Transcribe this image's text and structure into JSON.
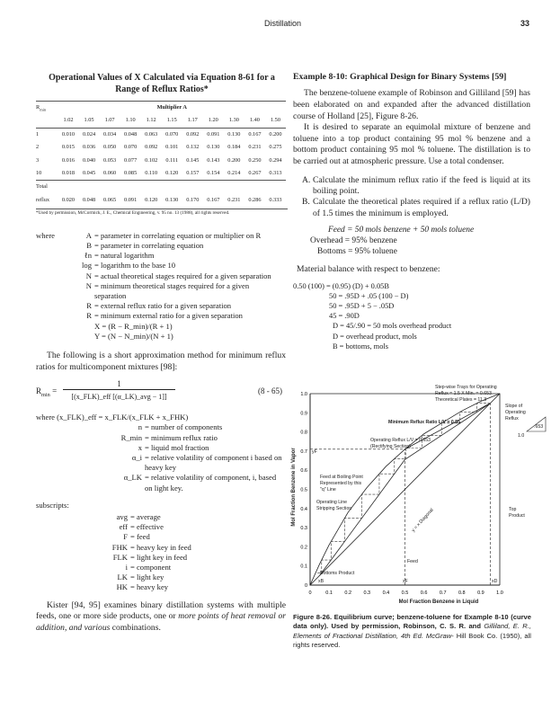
{
  "header": {
    "running_title": "Distillation",
    "page_number": "33"
  },
  "table": {
    "title": "Operational Values of X Calculated via Equation 8-61 for a Range of Reflux Ratios*",
    "row_header": "R",
    "row_header_sub": "min",
    "group_header": "Multiplier A",
    "columns": [
      "1.02",
      "1.05",
      "1.07",
      "1.10",
      "1.12",
      "1.15",
      "1.17",
      "1.20",
      "1.30",
      "1.40",
      "1.50"
    ],
    "rows": [
      {
        "label": "1",
        "values": [
          "0.010",
          "0.024",
          "0.034",
          "0.048",
          "0.063",
          "0.070",
          "0.092",
          "0.091",
          "0.130",
          "0.167",
          "0.200"
        ]
      },
      {
        "label": "2",
        "values": [
          "0.015",
          "0.036",
          "0.050",
          "0.070",
          "0.092",
          "0.101",
          "0.132",
          "0.130",
          "0.184",
          "0.231",
          "0.275"
        ]
      },
      {
        "label": "3",
        "values": [
          "0.016",
          "0.040",
          "0.053",
          "0.077",
          "0.102",
          "0.111",
          "0.145",
          "0.143",
          "0.200",
          "0.250",
          "0.294"
        ]
      },
      {
        "label": "10",
        "values": [
          "0.018",
          "0.045",
          "0.060",
          "0.085",
          "0.110",
          "0.120",
          "0.157",
          "0.154",
          "0.214",
          "0.267",
          "0.313"
        ]
      }
    ],
    "total_label_1": "Total",
    "total_label_2": "reflux",
    "total_values": [
      "0.020",
      "0.048",
      "0.065",
      "0.091",
      "0.120",
      "0.130",
      "0.170",
      "0.167",
      "0.231",
      "0.286",
      "0.333"
    ],
    "footnote": "*Used by permission, McCormick, J. E., Chemical Engineering, v. 95 no. 13 (1988), all rights reserved."
  },
  "where1": {
    "lead": "where",
    "items": [
      {
        "k": "A",
        "v": "= parameter in correlating equation or multiplier on R",
        "sub": "min"
      },
      {
        "k": "B",
        "v": "= parameter in correlating equation"
      },
      {
        "k": "ℓn",
        "v": "= natural logarithm"
      },
      {
        "k": "log",
        "v": "= logarithm to the base 10"
      },
      {
        "k": "N",
        "v": "= actual theoretical stages required for a given separation"
      },
      {
        "k": "N",
        "ksub": "min",
        "v": "= minimum theoretical stages required for a given separation"
      },
      {
        "k": "R",
        "v": "= external reflux ratio for a given separation"
      },
      {
        "k": "R",
        "ksub": "min",
        "v": "= minimum external ratio for a given separation"
      },
      {
        "k": "",
        "v": "X = (R − R_min)/(R + 1)"
      },
      {
        "k": "",
        "v": "Y = (N − N_min)/(N + 1)"
      }
    ]
  },
  "para_short": "The following is a short approximation method for minimum reflux ratios for multicomponent mixtures [98]:",
  "equation": {
    "lhs": "R",
    "lhs_sub": "min",
    "numerator": "1",
    "denominator": "[(x_FLK)_eff [(α_LK)_avg − 1]]",
    "number": "(8 - 65)"
  },
  "where2": {
    "lead": "where (x_FLK)_eff = x_FLK/(x_FLK + x_FHK)",
    "items": [
      {
        "k": "n",
        "v": "= number of components"
      },
      {
        "k": "R_min",
        "v": "= minimum reflux ratio"
      },
      {
        "k": "x",
        "v": "= liquid mol fraction"
      },
      {
        "k": "α_i",
        "v": "= relative volatility of component i based on heavy key"
      },
      {
        "k": "α_LK",
        "v": "= relative volatility of component, i, based on light key."
      }
    ]
  },
  "subscripts": {
    "lead": "subscripts:",
    "items": [
      {
        "k": "avg",
        "v": "= average"
      },
      {
        "k": "eff",
        "v": "= effective"
      },
      {
        "k": "F",
        "v": "= feed"
      },
      {
        "k": "FHK",
        "v": "= heavy key in feed"
      },
      {
        "k": "FLK",
        "v": "= light key in feed"
      },
      {
        "k": "i",
        "v": "= component"
      },
      {
        "k": "LK",
        "v": "= light key"
      },
      {
        "k": "HK",
        "v": "= heavy key"
      }
    ]
  },
  "para_kister_1": "Kister [94, 95] examines binary distillation systems with multiple feeds, one or more side products, one or ",
  "para_kister_2": "more points of heat removal or addition, and various",
  "para_kister_3": " combinations.",
  "example": {
    "title": "Example 8-10: Graphical Design for Binary Systems [59]",
    "p1": "The benzene-toluene example of Robinson and Gilliland [59] has been elaborated on and expanded after the advanced distillation course of Holland [25], Figure 8-26.",
    "p2": "It is desired to separate an equimolal mixture of benzene and toluene into a top product containing 95 mol % benzene and a bottom product containing 95 mol % toluene. The distillation is to be carried out at atmospheric pressure. Use a total condenser.",
    "tasks": [
      {
        "k": "A.",
        "v": "Calculate the minimum reflux ratio if the feed is liquid at its boiling point."
      },
      {
        "k": "B.",
        "v": "Calculate the theoretical plates required if a reflux ratio (L/D) of 1.5 times the minimum is employed."
      }
    ],
    "feed": "Feed = 50 mols benzene + 50 mols toluene",
    "overhead": "Overhead = 95% benzene",
    "bottoms": "Bottoms = 95% toluene",
    "mb_intro": "Material balance with respect to benzene:",
    "mb_lines": [
      "0.50 (100) = (0.95) (D) + 0.05B",
      "50 = .95D + .05 (100 − D)",
      "50 = .95D + 5 − .05D",
      "45 = .90D",
      "D = 45/.90 = 50 mols overhead product",
      "D = overhead product, mols",
      "B = bottoms, mols"
    ]
  },
  "chart_data": {
    "type": "line",
    "xlabel": "Mol Fraction Benzene in Liquid",
    "ylabel": "Mol Fraction Benzene in Vapor",
    "xlim": [
      0,
      1.0
    ],
    "ylim": [
      0,
      1.0
    ],
    "x_ticks": [
      "0",
      "0.1",
      "0.2",
      "0.3",
      "0.4",
      "0.5",
      "0.6",
      "0.7",
      "0.8",
      "0.9",
      "1.0"
    ],
    "y_ticks": [
      "0",
      "0.1",
      "0.2",
      "0.3",
      "0.4",
      "0.5",
      "0.6",
      "0.7",
      "0.8",
      "0.9",
      "1.0"
    ],
    "grid": false,
    "equilibrium_curve": {
      "x": [
        0,
        0.05,
        0.1,
        0.2,
        0.3,
        0.4,
        0.5,
        0.6,
        0.7,
        0.8,
        0.9,
        0.95,
        1.0
      ],
      "y": [
        0,
        0.11,
        0.21,
        0.38,
        0.51,
        0.62,
        0.71,
        0.79,
        0.85,
        0.91,
        0.96,
        0.98,
        1.0
      ]
    },
    "diagonal": {
      "x": [
        0,
        1
      ],
      "y": [
        0,
        1
      ]
    },
    "rectifying_line": {
      "x": [
        0.95,
        0.5
      ],
      "y": [
        0.95,
        0.656
      ]
    },
    "min_reflux_line": {
      "x": [
        0.95,
        0.5
      ],
      "y": [
        0.95,
        0.71
      ]
    },
    "stripping_line": {
      "x": [
        0.05,
        0.5
      ],
      "y": [
        0.05,
        0.656
      ]
    },
    "q_line_x": 0.5,
    "xB": 0.05,
    "xF": 0.5,
    "xD": 0.95,
    "yF": 0.71,
    "annotations": {
      "trays": "Step-wise Trays for Operating",
      "trays2": "Reflux = 1.5 X Min. = 0.653",
      "trays3": "Theoretical Plates = 11.3",
      "min_reflux": "Minimum Reflux Ratio L/V = 0.55",
      "operating": "Operating Reflux L/V = 0.653",
      "rectifying": "(Rectifying Section)",
      "feed_bp": "Feed at Boiling Point",
      "feed_bp2": "Represented by this",
      "feed_bp3": "\"q\" Line",
      "stripping": "Operating Line",
      "stripping2": "Stripping Section",
      "diagonal": "y = x Diagonal",
      "slope": "Slope of",
      "slope2": "Operating",
      "slope3": "Reflux",
      "slope_rise": ".653",
      "slope_run": "1.0",
      "top_product": "Top",
      "top_product2": "Product",
      "feed": "Feed",
      "bottoms_product": "Bottoms Product",
      "yF": "yF",
      "xB": "xB",
      "xF": "xF",
      "xD": "xD"
    },
    "caption_1": "Figure 8-26. Equilibrium curve; benzene-toluene for Example 8-10 (curve data only). Used by permission, Robinson, C. S. R. and ",
    "caption_2": "Gilliland, E. R., Elements of Fractional Distillation, 4th Ed. McGraw-",
    "caption_3": "Hill Book Co. (1950), all rights reserved."
  }
}
